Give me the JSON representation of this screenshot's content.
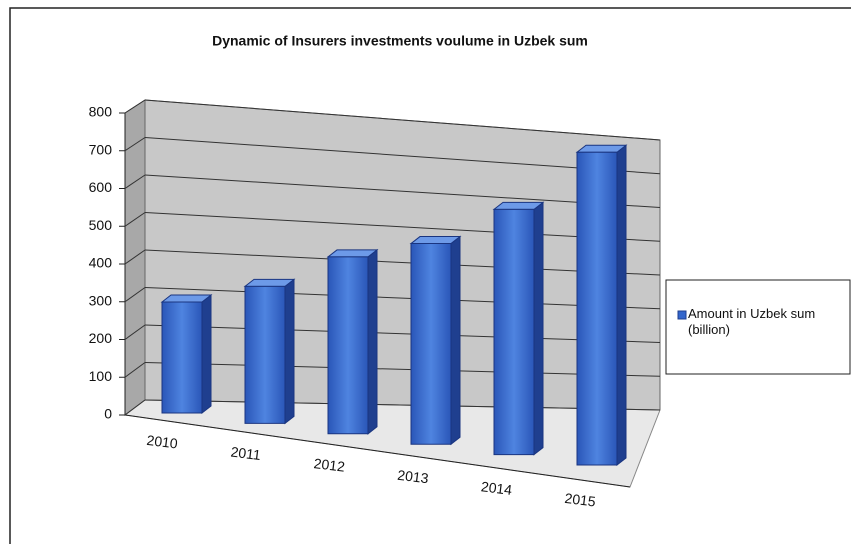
{
  "chart_data": {
    "type": "bar3d",
    "title": "Dynamic of Insurers investments voulume in Uzbek sum",
    "categories": [
      "2010",
      "2011",
      "2012",
      "2013",
      "2014",
      "2015"
    ],
    "series": [
      {
        "name": "Amount in Uzbek sum (billion)",
        "color": "#3366cc",
        "values": [
          300,
          355,
          440,
          480,
          565,
          695
        ]
      }
    ],
    "ylim": [
      0,
      800
    ],
    "yticks": [
      0,
      100,
      200,
      300,
      400,
      500,
      600,
      700,
      800
    ],
    "grid": true,
    "legend": "right"
  }
}
